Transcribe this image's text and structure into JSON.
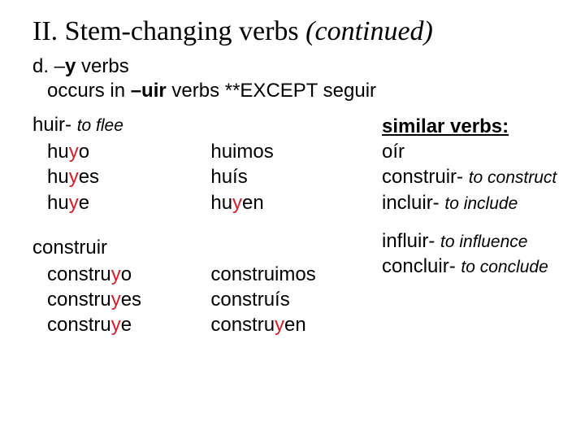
{
  "colors": {
    "text": "#000000",
    "accent": "#d1202b",
    "background": "#ffffff"
  },
  "title": {
    "number": "II.",
    "text": "Stem-changing verbs",
    "continued": "(continued)"
  },
  "subhead": {
    "prefix": "d. –",
    "letter": "y",
    "suffix": " verbs"
  },
  "note": {
    "t1": "occurs in ",
    "t2": "–uir",
    "t3": "  verbs **EXCEPT seguir"
  },
  "huir": {
    "name": "huir-",
    "gloss": "to flee",
    "cells": [
      {
        "pre": "hu",
        "hi": "y",
        "post": "o"
      },
      {
        "pre": "",
        "hi": "",
        "post": "huimos"
      },
      {
        "pre": "hu",
        "hi": "y",
        "post": "es"
      },
      {
        "pre": "",
        "hi": "",
        "post": "huís"
      },
      {
        "pre": "hu",
        "hi": "y",
        "post": "e"
      },
      {
        "pre": "hu",
        "hi": "y",
        "post": "en"
      }
    ]
  },
  "construir": {
    "name": "construir",
    "cells": [
      {
        "pre": "constru",
        "hi": "y",
        "post": "o"
      },
      {
        "pre": "",
        "hi": "",
        "post": "construimos"
      },
      {
        "pre": "constru",
        "hi": "y",
        "post": "es"
      },
      {
        "pre": "",
        "hi": "",
        "post": "construís"
      },
      {
        "pre": "constru",
        "hi": "y",
        "post": "e"
      },
      {
        "pre": "constru",
        "hi": "y",
        "post": "en"
      }
    ]
  },
  "similar": {
    "title": "similar verbs:",
    "items": [
      {
        "word": "oír",
        "gloss": ""
      },
      {
        "word": "construir-",
        "gloss": "to construct"
      },
      {
        "word": "incluir-",
        "gloss": "to include"
      },
      {
        "word": "influir-",
        "gloss": "to influence"
      },
      {
        "word": "concluir-",
        "gloss": "to conclude"
      }
    ]
  }
}
